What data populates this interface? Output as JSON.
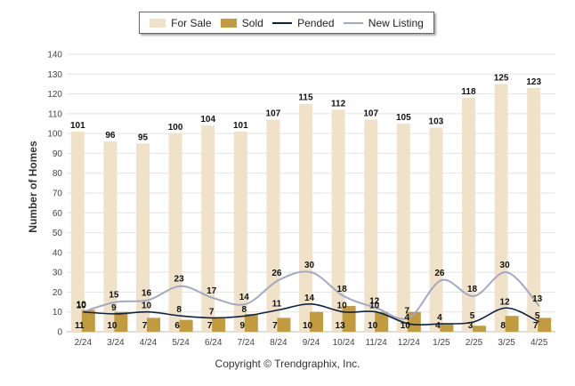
{
  "chart_data": {
    "type": "bar",
    "title": "",
    "xlabel": "",
    "ylabel": "Number of Homes",
    "ylim": [
      0,
      140
    ],
    "yticks": [
      0,
      10,
      20,
      30,
      40,
      50,
      60,
      70,
      80,
      90,
      100,
      110,
      120,
      130,
      140
    ],
    "grid": true,
    "legend_position": "top",
    "categories": [
      "2/24",
      "3/24",
      "4/24",
      "5/24",
      "6/24",
      "7/24",
      "8/24",
      "9/24",
      "10/24",
      "11/24",
      "12/24",
      "1/25",
      "2/25",
      "3/25",
      "4/25"
    ],
    "series": [
      {
        "name": "For Sale",
        "kind": "bar",
        "color": "#efe2c8",
        "values": [
          101,
          96,
          95,
          100,
          104,
          101,
          107,
          115,
          112,
          107,
          105,
          103,
          118,
          125,
          123
        ]
      },
      {
        "name": "Sold",
        "kind": "bar",
        "color": "#c29b3f",
        "values": [
          11,
          10,
          7,
          6,
          7,
          9,
          7,
          10,
          13,
          10,
          10,
          4,
          3,
          8,
          7
        ]
      },
      {
        "name": "Pended",
        "kind": "line",
        "color": "#0e2244",
        "values": [
          10,
          9,
          10,
          8,
          7,
          8,
          11,
          14,
          10,
          10,
          4,
          4,
          5,
          12,
          5
        ]
      },
      {
        "name": "New Listing",
        "kind": "line",
        "color": "#a3a9c4",
        "values": [
          10,
          15,
          16,
          23,
          17,
          14,
          26,
          30,
          18,
          12,
          7,
          26,
          18,
          30,
          13
        ]
      }
    ]
  },
  "copyright": "Copyright © Trendgraphix, Inc."
}
